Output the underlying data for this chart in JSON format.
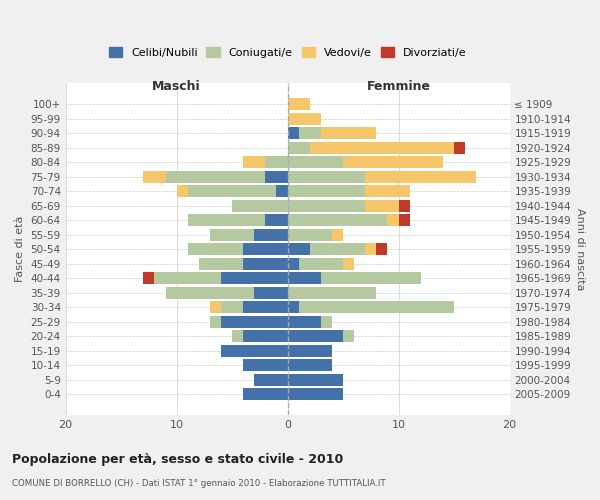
{
  "age_groups": [
    "100+",
    "95-99",
    "90-94",
    "85-89",
    "80-84",
    "75-79",
    "70-74",
    "65-69",
    "60-64",
    "55-59",
    "50-54",
    "45-49",
    "40-44",
    "35-39",
    "30-34",
    "25-29",
    "20-24",
    "15-19",
    "10-14",
    "5-9",
    "0-4"
  ],
  "birth_years": [
    "≤ 1909",
    "1910-1914",
    "1915-1919",
    "1920-1924",
    "1925-1929",
    "1930-1934",
    "1935-1939",
    "1940-1944",
    "1945-1949",
    "1950-1954",
    "1955-1959",
    "1960-1964",
    "1965-1969",
    "1970-1974",
    "1975-1979",
    "1980-1984",
    "1985-1989",
    "1990-1994",
    "1995-1999",
    "2000-2004",
    "2005-2009"
  ],
  "colors": {
    "celibe": "#4472a8",
    "coniugato": "#b5c9a0",
    "vedovo": "#f5c76a",
    "divorziato": "#c0392b"
  },
  "maschi": {
    "celibe": [
      0,
      0,
      0,
      0,
      0,
      2,
      1,
      0,
      2,
      3,
      4,
      4,
      6,
      3,
      4,
      6,
      4,
      6,
      4,
      3,
      4
    ],
    "coniugato": [
      0,
      0,
      0,
      0,
      2,
      9,
      8,
      5,
      7,
      4,
      5,
      4,
      6,
      8,
      2,
      1,
      1,
      0,
      0,
      0,
      0
    ],
    "vedovo": [
      0,
      0,
      0,
      0,
      2,
      2,
      1,
      0,
      0,
      0,
      0,
      0,
      0,
      0,
      1,
      0,
      0,
      0,
      0,
      0,
      0
    ],
    "divorziato": [
      0,
      0,
      0,
      0,
      0,
      0,
      0,
      0,
      0,
      0,
      0,
      0,
      1,
      0,
      0,
      0,
      0,
      0,
      0,
      0,
      0
    ]
  },
  "femmine": {
    "celibe": [
      0,
      0,
      1,
      0,
      0,
      0,
      0,
      0,
      0,
      0,
      2,
      1,
      3,
      0,
      1,
      3,
      5,
      4,
      4,
      5,
      5
    ],
    "coniugato": [
      0,
      0,
      2,
      2,
      5,
      7,
      7,
      7,
      9,
      4,
      5,
      4,
      9,
      8,
      14,
      1,
      1,
      0,
      0,
      0,
      0
    ],
    "vedovo": [
      2,
      3,
      5,
      13,
      9,
      10,
      4,
      3,
      1,
      1,
      1,
      1,
      0,
      0,
      0,
      0,
      0,
      0,
      0,
      0,
      0
    ],
    "divorziato": [
      0,
      0,
      0,
      1,
      0,
      0,
      0,
      1,
      1,
      0,
      1,
      0,
      0,
      0,
      0,
      0,
      0,
      0,
      0,
      0,
      0
    ]
  },
  "title": "Popolazione per età, sesso e stato civile - 2010",
  "subtitle": "COMUNE DI BORRELLO (CH) - Dati ISTAT 1° gennaio 2010 - Elaborazione TUTTITALIA.IT",
  "ylabel_left": "Fasce di età",
  "ylabel_right": "Anni di nascita",
  "xlabel_left": "Maschi",
  "xlabel_right": "Femmine",
  "xlim": 20,
  "bg_color": "#f0f0f0",
  "plot_bg": "#ffffff",
  "legend_labels": [
    "Celibi/Nubili",
    "Coniugati/e",
    "Vedovi/e",
    "Divorziati/e"
  ]
}
